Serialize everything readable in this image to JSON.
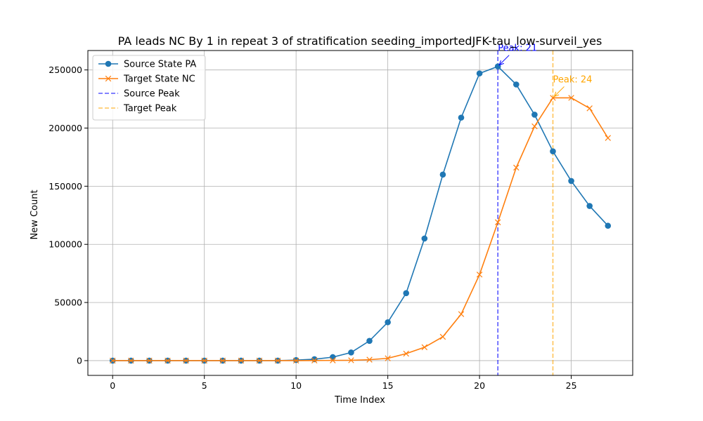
{
  "chart_data": {
    "type": "line",
    "title": "PA leads NC By 1 in repeat 3 of stratification seeding_importedJFK-tau_low-surveil_yes",
    "xlabel": "Time Index",
    "ylabel": "New Count",
    "xlim": [
      -1.35,
      28.35
    ],
    "ylim": [
      -12700,
      266700
    ],
    "xticks": [
      0,
      5,
      10,
      15,
      20,
      25
    ],
    "yticks": [
      0,
      50000,
      100000,
      150000,
      200000,
      250000
    ],
    "grid": true,
    "legend_position": "top-left",
    "x": [
      0,
      1,
      2,
      3,
      4,
      5,
      6,
      7,
      8,
      9,
      10,
      11,
      12,
      13,
      14,
      15,
      16,
      17,
      18,
      19,
      20,
      21,
      22,
      23,
      24,
      25,
      26,
      27
    ],
    "series": [
      {
        "name": "Source State PA",
        "color": "#1f77b4",
        "marker": "circle",
        "values": [
          0,
          0,
          0,
          0,
          0,
          0,
          0,
          0,
          0,
          0,
          500,
          1200,
          3000,
          7000,
          17000,
          33000,
          58000,
          105000,
          160000,
          209000,
          247000,
          253000,
          237500,
          211500,
          180000,
          154500,
          133000,
          116000
        ]
      },
      {
        "name": "Target State NC",
        "color": "#ff7f0e",
        "marker": "x",
        "values": [
          0,
          0,
          0,
          0,
          0,
          0,
          0,
          0,
          0,
          0,
          0,
          100,
          200,
          300,
          800,
          2000,
          6000,
          11500,
          20500,
          40000,
          74000,
          119000,
          166000,
          201500,
          226000,
          226000,
          217000,
          191500
        ]
      }
    ],
    "vlines": [
      {
        "name": "Source Peak",
        "x": 21,
        "color": "#0000ff"
      },
      {
        "name": "Target Peak",
        "x": 24,
        "color": "#ffa500"
      }
    ],
    "annotations": [
      {
        "text": "Peak: 21",
        "x": 21,
        "y": 253000,
        "color": "#0000ff"
      },
      {
        "text": "Peak: 24",
        "x": 24,
        "y": 226000,
        "color": "#ffa500"
      }
    ]
  }
}
